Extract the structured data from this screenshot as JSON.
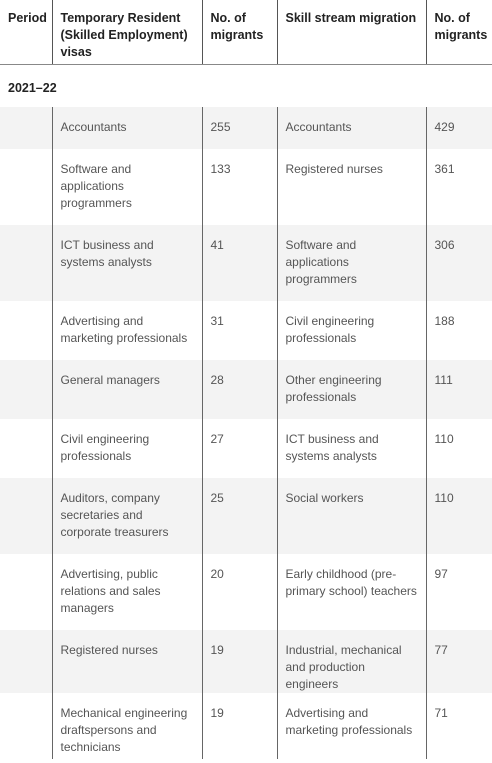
{
  "header": {
    "period": "Period",
    "temp_visa": "Temporary Resident (Skilled Employment) visas",
    "temp_count": "No. of migrants",
    "skill_stream": "Skill stream migration",
    "skill_count": "No. of migrants"
  },
  "period_label": "2021–22",
  "rows": [
    {
      "temp": "Accountants",
      "temp_n": "255",
      "skill": "Accountants",
      "skill_n": "429"
    },
    {
      "temp": "Software and applications programmers",
      "temp_n": "133",
      "skill": "Registered nurses",
      "skill_n": "361"
    },
    {
      "temp": "ICT business and systems analysts",
      "temp_n": "41",
      "skill": "Software and applications programmers",
      "skill_n": "306"
    },
    {
      "temp": "Advertising and marketing professionals",
      "temp_n": "31",
      "skill": "Civil engineering professionals",
      "skill_n": "188"
    },
    {
      "temp": "General managers",
      "temp_n": "28",
      "skill": "Other engineering professionals",
      "skill_n": "111"
    },
    {
      "temp": "Civil engineering professionals",
      "temp_n": "27",
      "skill": "ICT business and systems analysts",
      "skill_n": "110"
    },
    {
      "temp": "Auditors, company secretaries and corporate treasurers",
      "temp_n": "25",
      "skill": "Social workers",
      "skill_n": "110"
    },
    {
      "temp": "Advertising, public relations and sales managers",
      "temp_n": "20",
      "skill": "Early childhood (pre-primary school) teachers",
      "skill_n": "97"
    },
    {
      "temp": "Registered nurses",
      "temp_n": "19",
      "skill": "Industrial, mechanical and production engineers",
      "skill_n": "77"
    },
    {
      "temp": "Mechanical engineering draftspersons and technicians",
      "temp_n": "19",
      "skill": "Advertising and marketing professionals",
      "skill_n": "71"
    }
  ]
}
